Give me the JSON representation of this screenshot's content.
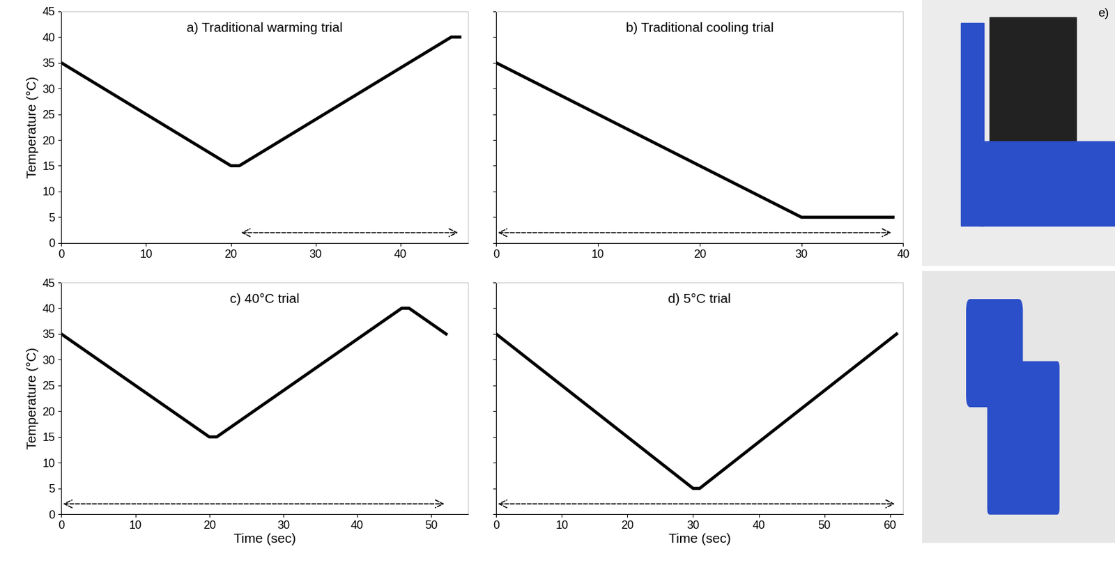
{
  "chart_data": [
    {
      "type": "line",
      "title": "a) Traditional warming trial",
      "x_label": "",
      "y_label": "Temperature (°C)",
      "x": [
        0,
        20,
        21,
        46,
        47
      ],
      "values": [
        35,
        15,
        15,
        40,
        40
      ],
      "color": "#000000",
      "span": {
        "x": [
          21,
          47
        ],
        "y": 2
      },
      "xlim": [
        0,
        48
      ],
      "xticks": [
        0,
        10,
        20,
        30,
        40
      ],
      "ylim": [
        0,
        45
      ],
      "yticks": [
        0,
        5,
        10,
        15,
        20,
        25,
        30,
        35,
        40,
        45
      ],
      "grid": false,
      "tick_labels": true
    },
    {
      "type": "line",
      "title": "b) Traditional cooling trial",
      "x_label": "",
      "y_label": "",
      "x": [
        0,
        30,
        31,
        39
      ],
      "values": [
        35,
        5,
        5,
        5
      ],
      "color": "#000000",
      "span": {
        "x": [
          0,
          39
        ],
        "y": 2
      },
      "xlim": [
        0,
        40
      ],
      "xticks": [
        0,
        10,
        20,
        30,
        40
      ],
      "ylim": [
        0,
        45
      ],
      "yticks": [
        0,
        5,
        10,
        15,
        20,
        25,
        30,
        35,
        40,
        45
      ],
      "grid": false,
      "tick_labels": "x"
    },
    {
      "type": "line",
      "title": "c) 40°C trial",
      "x_label": "Time (sec)",
      "y_label": "Temperature (°C)",
      "x": [
        0,
        20,
        21,
        46,
        47,
        52
      ],
      "values": [
        35,
        15,
        15,
        40,
        40,
        35
      ],
      "color": "#000000",
      "span": {
        "x": [
          0,
          52
        ],
        "y": 2
      },
      "xlim": [
        0,
        55
      ],
      "xticks": [
        0,
        10,
        20,
        30,
        40,
        50
      ],
      "ylim": [
        0,
        45
      ],
      "yticks": [
        0,
        5,
        10,
        15,
        20,
        25,
        30,
        35,
        40,
        45
      ],
      "grid": false,
      "tick_labels": true
    },
    {
      "type": "line",
      "title": "d) 5°C trial",
      "x_label": "Time (sec)",
      "y_label": "",
      "x": [
        0,
        30,
        31,
        61
      ],
      "values": [
        35,
        5,
        5,
        35
      ],
      "color": "#000000",
      "span": {
        "x": [
          0,
          61
        ],
        "y": 2
      },
      "xlim": [
        0,
        62
      ],
      "xticks": [
        0,
        10,
        20,
        30,
        40,
        50,
        60
      ],
      "ylim": [
        0,
        45
      ],
      "yticks": [
        0,
        5,
        10,
        15,
        20,
        25,
        30,
        35,
        40,
        45
      ],
      "grid": false,
      "tick_labels": "x"
    }
  ],
  "photo_panel": {
    "label": "e)"
  }
}
